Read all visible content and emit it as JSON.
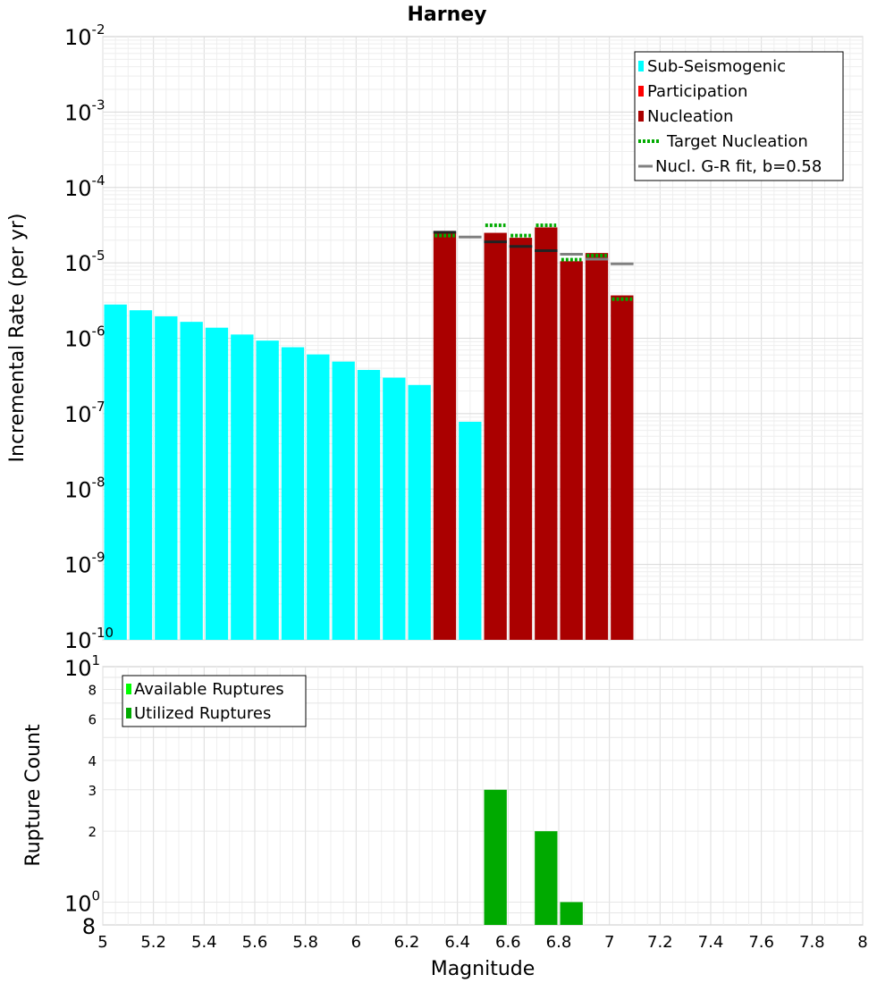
{
  "chart_data": [
    {
      "type": "bar",
      "title": "Harney",
      "ylabel": "Incremental Rate (per yr)",
      "xlabel": "",
      "xlim": [
        5,
        8
      ],
      "ylim": [
        1e-10,
        0.01
      ],
      "yscale": "log",
      "ytick_labels": [
        {
          "base": "10",
          "exp": "-2"
        },
        {
          "base": "10",
          "exp": "-3"
        },
        {
          "base": "10",
          "exp": "-4"
        },
        {
          "base": "10",
          "exp": "-5"
        },
        {
          "base": "10",
          "exp": "-6"
        },
        {
          "base": "10",
          "exp": "-7"
        },
        {
          "base": "10",
          "exp": "-8"
        },
        {
          "base": "10",
          "exp": "-9"
        },
        {
          "base": "10",
          "exp": "-10"
        }
      ],
      "grid": true,
      "legend_position": "top-right",
      "series": [
        {
          "name": "Sub-Seismogenic",
          "color": "#00ffff",
          "x": [
            5.05,
            5.15,
            5.25,
            5.35,
            5.45,
            5.55,
            5.65,
            5.75,
            5.85,
            5.95,
            6.05,
            6.15,
            6.25,
            6.45
          ],
          "values": [
            2.8e-06,
            2.35e-06,
            1.95e-06,
            1.65e-06,
            1.38e-06,
            1.12e-06,
            9.3e-07,
            7.6e-07,
            6.1e-07,
            4.9e-07,
            3.8e-07,
            3e-07,
            2.4e-07,
            7.8e-08
          ]
        },
        {
          "name": "Participation",
          "color": "#ff0000",
          "x": [],
          "values": []
        },
        {
          "name": "Nucleation",
          "color": "#aa0000",
          "x": [
            6.35,
            6.55,
            6.65,
            6.75,
            6.85,
            6.95,
            7.05
          ],
          "values": [
            2.5e-05,
            2.5e-05,
            2.15e-05,
            2.95e-05,
            1.05e-05,
            1.35e-05,
            3.7e-06
          ]
        },
        {
          "name": "Target Nucleation",
          "color": "#00aa00",
          "style": "dotted",
          "x": [
            6.35,
            6.55,
            6.65,
            6.75,
            6.85,
            6.95,
            7.05
          ],
          "values": [
            2.3e-05,
            3.15e-05,
            2.3e-05,
            3.15e-05,
            1.1e-05,
            1.25e-05,
            3.3e-06
          ]
        },
        {
          "name": "Nucl. G-R fit, b=0.58",
          "color": "#808080",
          "style": "solid",
          "x": [
            6.35,
            6.45,
            6.55,
            6.65,
            6.75,
            6.85,
            6.95,
            7.05
          ],
          "values": [
            2.55e-05,
            2.2e-05,
            1.9e-05,
            1.65e-05,
            1.45e-05,
            1.3e-05,
            1.12e-05,
            9.7e-06
          ]
        }
      ]
    },
    {
      "type": "bar",
      "title": "",
      "xlabel": "Magnitude",
      "ylabel": "Rupture Count",
      "xlim": [
        5,
        8
      ],
      "ylim": [
        0.8,
        10
      ],
      "yscale": "log",
      "x_ticks": [
        "5",
        "5.2",
        "5.4",
        "5.6",
        "5.8",
        "6",
        "6.2",
        "6.4",
        "6.6",
        "6.8",
        "7",
        "7.2",
        "7.4",
        "7.6",
        "7.8",
        "8"
      ],
      "y_tick_labels": {
        "top_base": "10",
        "top_exp": "1",
        "mid_base": "10",
        "mid_exp": "0",
        "bottom": "8",
        "minor": [
          "8",
          "6",
          "4",
          "3",
          "2"
        ]
      },
      "grid": true,
      "legend_position": "top-left",
      "series": [
        {
          "name": "Available Ruptures",
          "color": "#00ff00",
          "x": [],
          "values": []
        },
        {
          "name": "Utilized Ruptures",
          "color": "#00aa00",
          "x": [
            6.55,
            6.75,
            6.85
          ],
          "values": [
            3,
            2,
            1
          ]
        }
      ]
    }
  ]
}
